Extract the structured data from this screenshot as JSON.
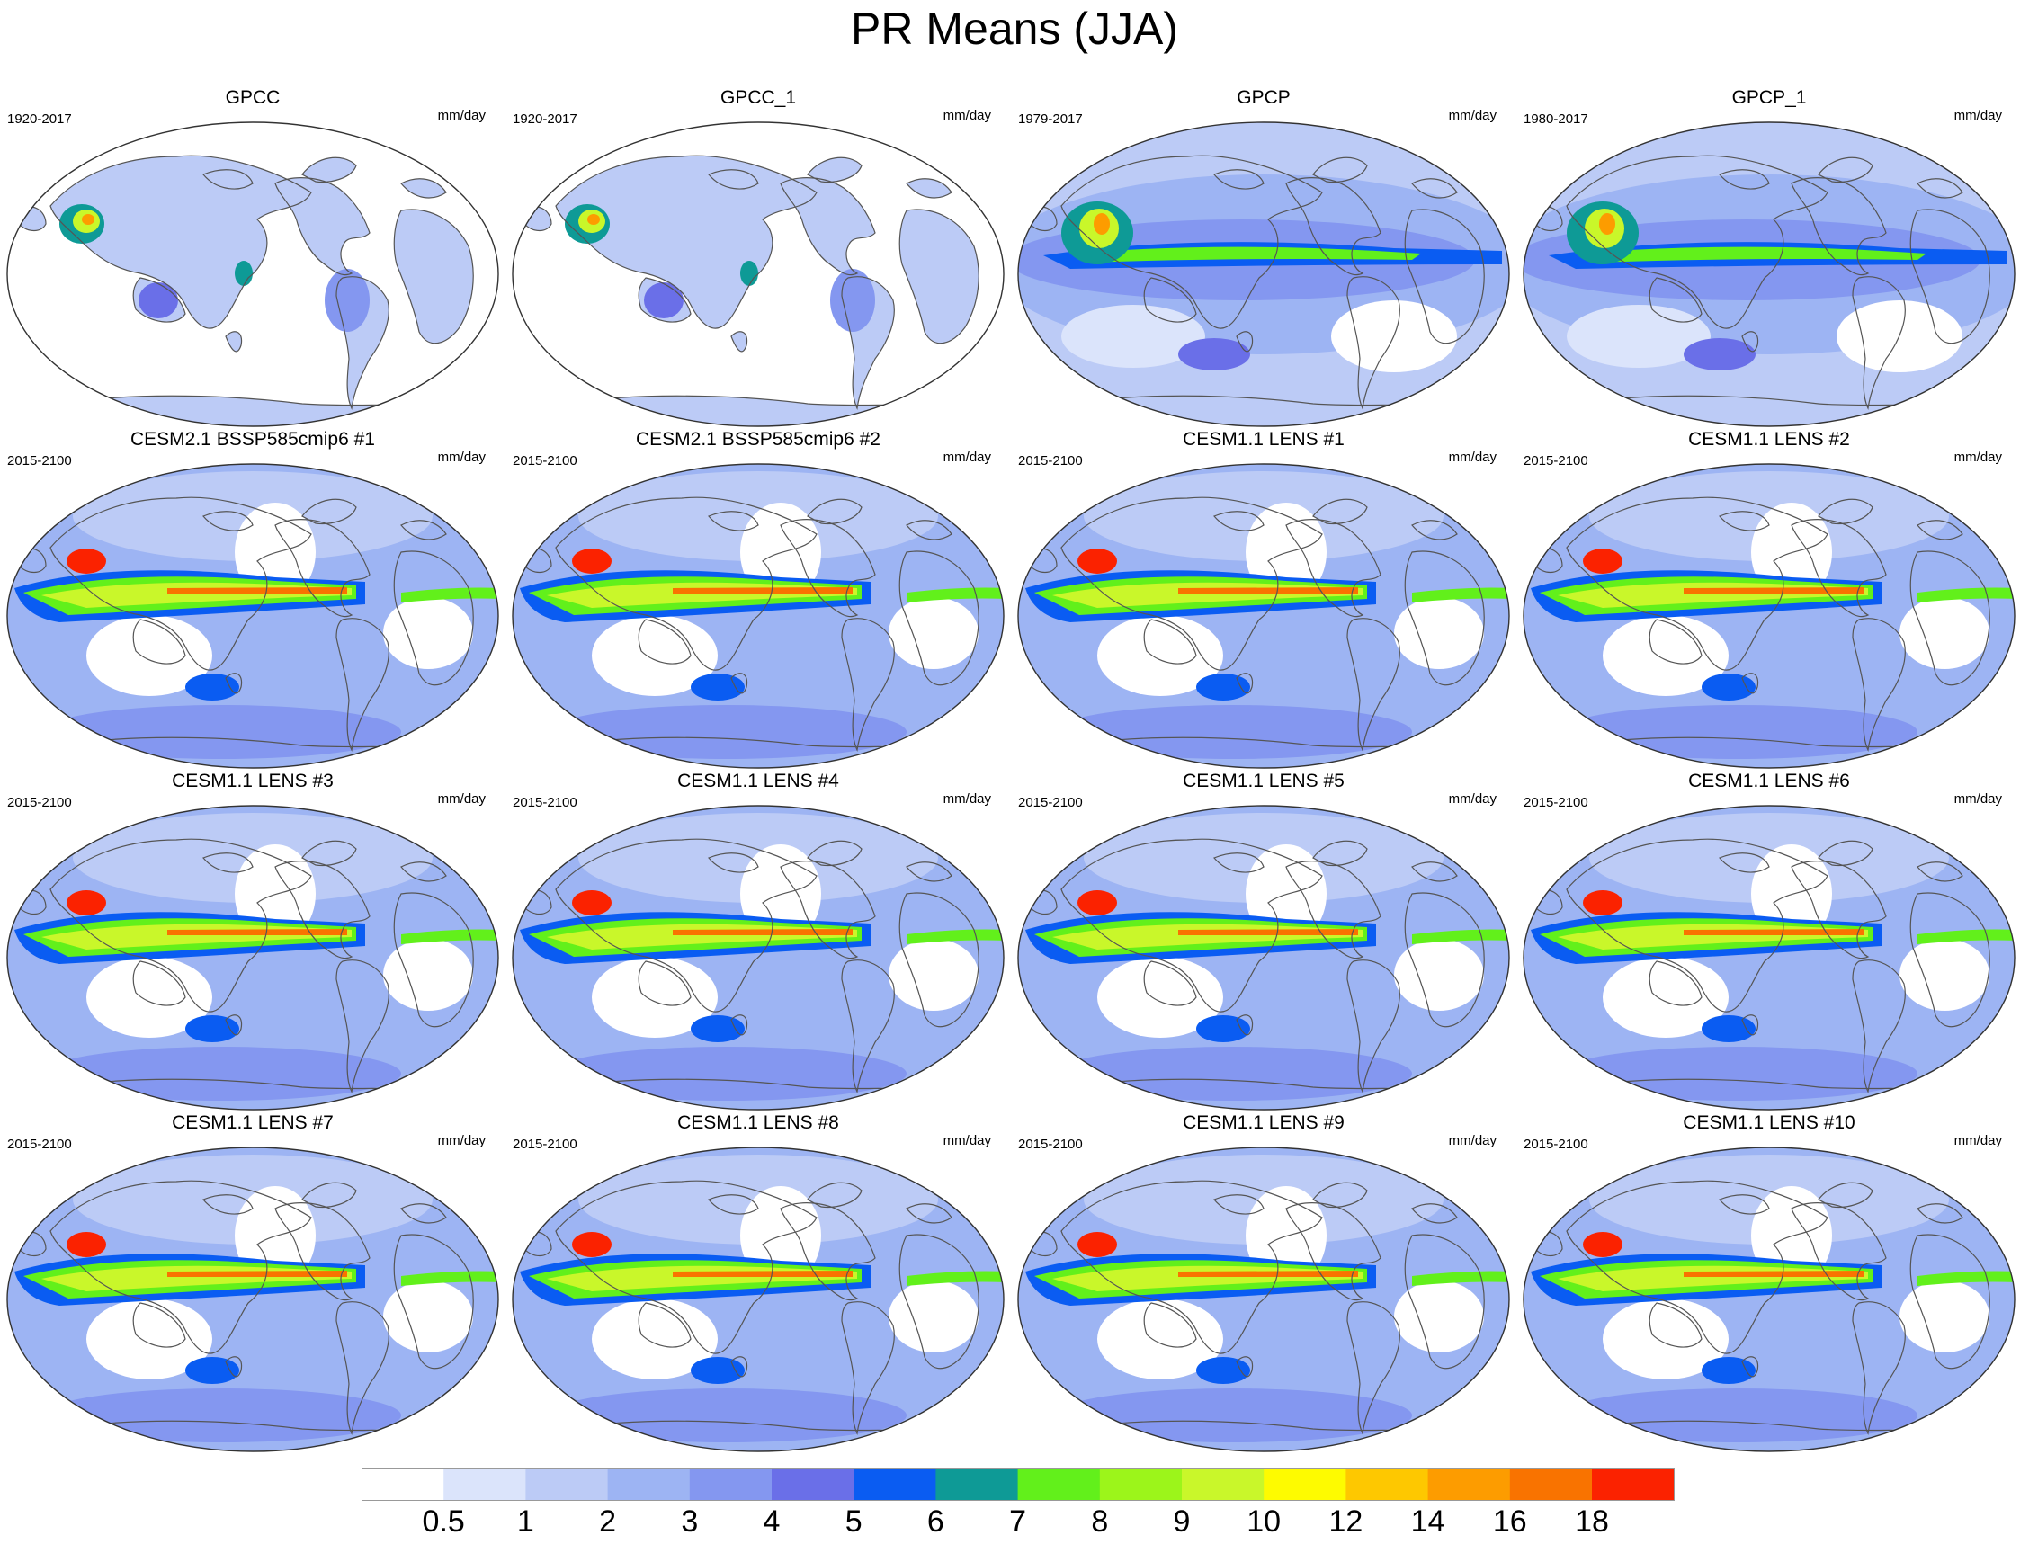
{
  "title": "PR Means (JJA)",
  "panels": [
    {
      "title": "GPCC",
      "years": "1920-2017",
      "units": "mm/day",
      "type": "land"
    },
    {
      "title": "GPCC_1",
      "years": "1920-2017",
      "units": "mm/day",
      "type": "land"
    },
    {
      "title": "GPCP",
      "years": "1979-2017",
      "units": "mm/day",
      "type": "obs"
    },
    {
      "title": "GPCP_1",
      "years": "1980-2017",
      "units": "mm/day",
      "type": "obs"
    },
    {
      "title": "CESM2.1 BSSP585cmip6 #1",
      "years": "2015-2100",
      "units": "mm/day",
      "type": "model"
    },
    {
      "title": "CESM2.1 BSSP585cmip6 #2",
      "years": "2015-2100",
      "units": "mm/day",
      "type": "model"
    },
    {
      "title": "CESM1.1 LENS #1",
      "years": "2015-2100",
      "units": "mm/day",
      "type": "model"
    },
    {
      "title": "CESM1.1 LENS #2",
      "years": "2015-2100",
      "units": "mm/day",
      "type": "model"
    },
    {
      "title": "CESM1.1 LENS #3",
      "years": "2015-2100",
      "units": "mm/day",
      "type": "model"
    },
    {
      "title": "CESM1.1 LENS #4",
      "years": "2015-2100",
      "units": "mm/day",
      "type": "model"
    },
    {
      "title": "CESM1.1 LENS #5",
      "years": "2015-2100",
      "units": "mm/day",
      "type": "model"
    },
    {
      "title": "CESM1.1 LENS #6",
      "years": "2015-2100",
      "units": "mm/day",
      "type": "model"
    },
    {
      "title": "CESM1.1 LENS #7",
      "years": "2015-2100",
      "units": "mm/day",
      "type": "model"
    },
    {
      "title": "CESM1.1 LENS #8",
      "years": "2015-2100",
      "units": "mm/day",
      "type": "model"
    },
    {
      "title": "CESM1.1 LENS #9",
      "years": "2015-2100",
      "units": "mm/day",
      "type": "model"
    },
    {
      "title": "CESM1.1 LENS #10",
      "years": "2015-2100",
      "units": "mm/day",
      "type": "model"
    }
  ],
  "colorbar": {
    "labels": [
      "0.5",
      "1",
      "2",
      "3",
      "4",
      "5",
      "6",
      "7",
      "8",
      "9",
      "10",
      "12",
      "14",
      "16",
      "18"
    ],
    "colors": [
      "#ffffff",
      "#dbe4fb",
      "#bccbf6",
      "#9db4f3",
      "#8497f0",
      "#6a6fe8",
      "#0a5cf2",
      "#0e9a96",
      "#62f01b",
      "#9cf51a",
      "#c9f72a",
      "#fefb00",
      "#fec800",
      "#fd9c00",
      "#f97300",
      "#fb2200"
    ]
  }
}
